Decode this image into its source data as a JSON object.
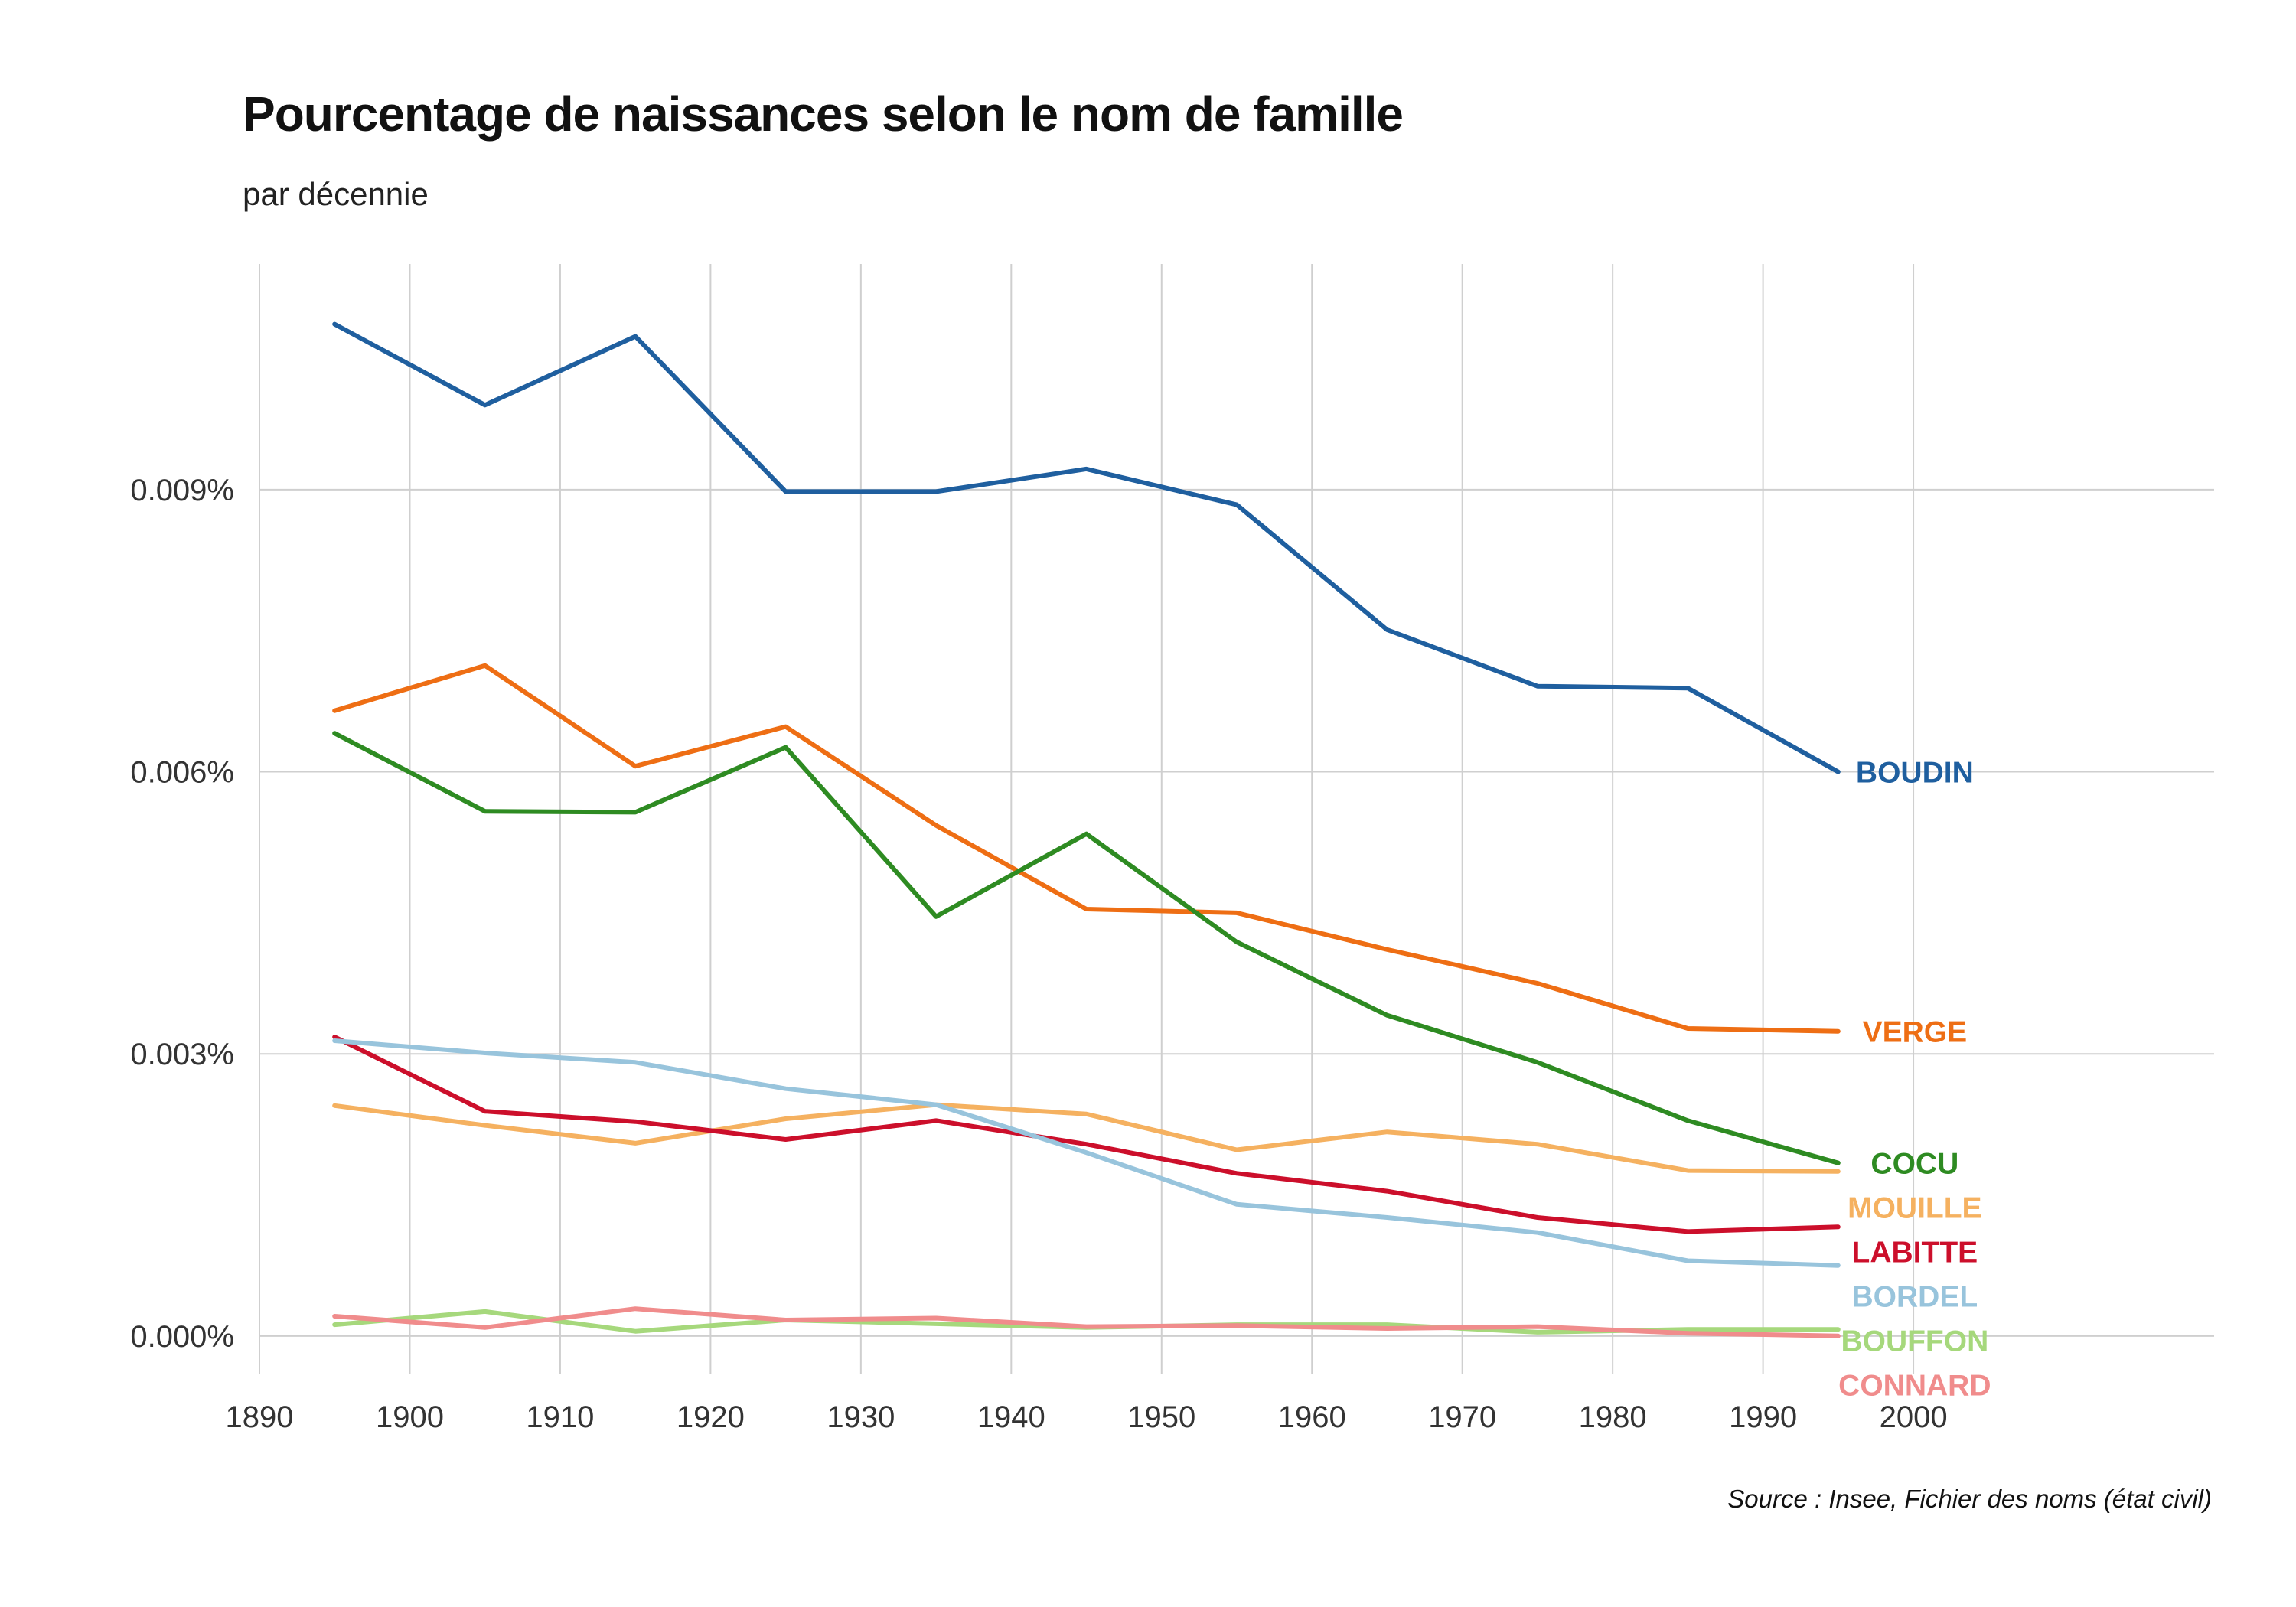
{
  "chart_data": {
    "type": "line",
    "title": "Pourcentage de naissances selon le nom de famille",
    "subtitle": "par décennie",
    "source": "Source : Insee, Fichier des noms (état civil)",
    "xlabel": "",
    "ylabel": "",
    "xlim": [
      1890,
      2020
    ],
    "ylim": [
      -0.0004,
      0.0114
    ],
    "x_ticks": [
      1890,
      1900,
      1910,
      1920,
      1930,
      1940,
      1950,
      1960,
      1970,
      1980,
      1990,
      2000
    ],
    "y_ticks": [
      0.0,
      0.003,
      0.006,
      0.009
    ],
    "y_tick_labels": [
      "0.000%",
      "0.003%",
      "0.006%",
      "0.009%"
    ],
    "grid": true,
    "legend": "direct labels at line ends",
    "x": [
      1895,
      1905,
      1915,
      1925,
      1935,
      1945,
      1955,
      1965,
      1975,
      1985,
      1995
    ],
    "series": [
      {
        "name": "BOUDIN",
        "color": "#1f5f9f",
        "values": [
          0.01076,
          0.0099,
          0.01063,
          0.00898,
          0.00898,
          0.00922,
          0.00884,
          0.00751,
          0.00691,
          0.00689,
          0.006
        ]
      },
      {
        "name": "VERGE",
        "color": "#ee6e14",
        "values": [
          0.00665,
          0.00713,
          0.00606,
          0.00648,
          0.00543,
          0.00454,
          0.0045,
          0.00411,
          0.00375,
          0.00327,
          0.00324
        ]
      },
      {
        "name": "COCU",
        "color": "#2e8b22",
        "values": [
          0.00641,
          0.00558,
          0.00557,
          0.00626,
          0.00446,
          0.00534,
          0.00419,
          0.00341,
          0.00291,
          0.00229,
          0.00184
        ]
      },
      {
        "name": "MOUILLE",
        "color": "#f5b160",
        "values": [
          0.00245,
          0.00224,
          0.00205,
          0.00231,
          0.00246,
          0.00236,
          0.00198,
          0.00217,
          0.00204,
          0.00176,
          0.00175
        ]
      },
      {
        "name": "LABITTE",
        "color": "#cc0f2b",
        "values": [
          0.00318,
          0.00239,
          0.00228,
          0.00209,
          0.00229,
          0.00204,
          0.00173,
          0.00154,
          0.00126,
          0.00111,
          0.00116
        ]
      },
      {
        "name": "BORDEL",
        "color": "#98c4dc",
        "values": [
          0.00314,
          0.00301,
          0.00291,
          0.00263,
          0.00246,
          0.00195,
          0.0014,
          0.00126,
          0.0011,
          0.0008,
          0.00075
        ]
      },
      {
        "name": "BOUFFON",
        "color": "#a6d87c",
        "values": [
          0.00012,
          0.00026,
          5e-05,
          0.00017,
          0.00013,
          9e-05,
          0.00012,
          0.00012,
          4e-05,
          7e-05,
          7e-05
        ]
      },
      {
        "name": "CONNARD",
        "color": "#f08c8c",
        "values": [
          0.00021,
          9e-05,
          0.00029,
          0.00017,
          0.00019,
          0.0001,
          0.00011,
          8e-05,
          0.0001,
          3e-05,
          0.0
        ]
      }
    ]
  }
}
